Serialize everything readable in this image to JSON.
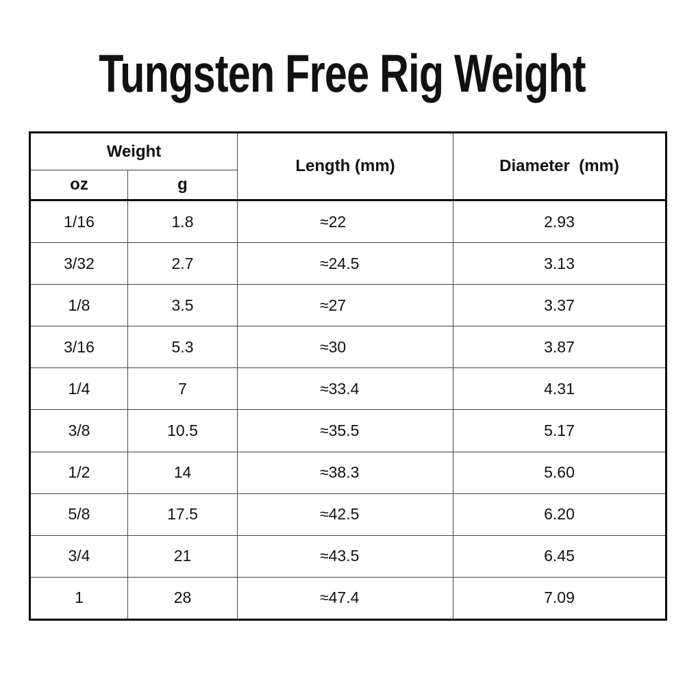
{
  "title": "Tungsten Free Rig Weight",
  "table": {
    "headers": {
      "weight": "Weight",
      "oz": "oz",
      "g": "g",
      "length": "Length (mm)",
      "diameter": "Diameter  (mm)"
    },
    "rows": [
      {
        "oz": "1/16",
        "g": "1.8",
        "length": "≈22",
        "diameter": "2.93"
      },
      {
        "oz": "3/32",
        "g": "2.7",
        "length": "≈24.5",
        "diameter": "3.13"
      },
      {
        "oz": "1/8",
        "g": "3.5",
        "length": "≈27",
        "diameter": "3.37"
      },
      {
        "oz": "3/16",
        "g": "5.3",
        "length": "≈30",
        "diameter": "3.87"
      },
      {
        "oz": "1/4",
        "g": "7",
        "length": "≈33.4",
        "diameter": "4.31"
      },
      {
        "oz": "3/8",
        "g": "10.5",
        "length": "≈35.5",
        "diameter": "5.17"
      },
      {
        "oz": "1/2",
        "g": "14",
        "length": "≈38.3",
        "diameter": "5.60"
      },
      {
        "oz": "5/8",
        "g": "17.5",
        "length": "≈42.5",
        "diameter": "6.20"
      },
      {
        "oz": "3/4",
        "g": "21",
        "length": "≈43.5",
        "diameter": "6.45"
      },
      {
        "oz": "1",
        "g": "28",
        "length": "≈47.4",
        "diameter": "7.09"
      }
    ]
  }
}
